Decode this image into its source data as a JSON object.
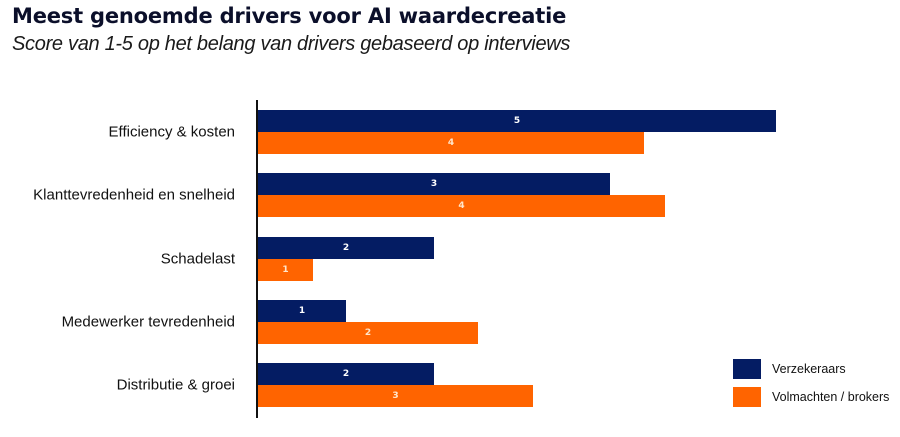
{
  "chart_data": {
    "type": "bar",
    "orientation": "horizontal",
    "title": "Meest genoemde drivers voor AI waardecreatie",
    "subtitle": "Score van 1-5 op het belang van drivers gebaseerd op interviews",
    "xlabel": "",
    "ylabel": "",
    "xlim": [
      0,
      5
    ],
    "grid": false,
    "legend_position": "bottom-right",
    "categories": [
      "Efficiency & kosten",
      "Klanttevredenheid en snelheid",
      "Schadelast",
      "Medewerker tevredenheid",
      "Distributie & groei"
    ],
    "series": [
      {
        "name": "Verzekeraars",
        "color": "#041c63",
        "values": [
          5.0,
          3.4,
          1.7,
          0.85,
          1.7
        ],
        "labels": [
          "5",
          "3",
          "2",
          "1",
          "2"
        ]
      },
      {
        "name": "Volmachten / brokers",
        "color": "#ff6400",
        "values": [
          3.73,
          3.93,
          0.53,
          2.12,
          2.65
        ],
        "labels": [
          "4",
          "4",
          "1",
          "2",
          "3"
        ]
      }
    ]
  },
  "header": {
    "title": "Meest genoemde drivers voor AI waardecreatie",
    "subtitle": "Score van 1-5 op het belang van drivers gebaseerd op interviews"
  },
  "legend": [
    {
      "label": "Verzekeraars",
      "color": "#041c63"
    },
    {
      "label": "Volmachten / brokers",
      "color": "#ff6400"
    }
  ]
}
